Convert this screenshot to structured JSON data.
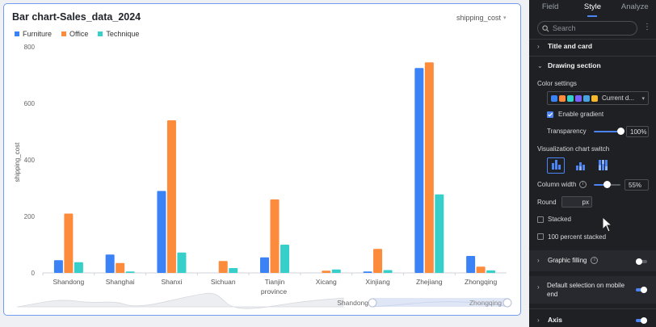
{
  "chart_card": {
    "title": "Bar chart-Sales_data_2024",
    "measure_select": "shipping_cost",
    "legend": [
      {
        "label": "Furniture",
        "color": "#3b82f6"
      },
      {
        "label": "Office",
        "color": "#fd8b3c"
      },
      {
        "label": "Technique",
        "color": "#36cfc9"
      }
    ],
    "slider": {
      "start_label": "Shandong",
      "end_label": "Zhongqing"
    }
  },
  "chart_data": {
    "type": "bar",
    "xlabel": "province",
    "ylabel": "shipping_cost",
    "ylim": [
      0,
      800
    ],
    "yticks": [
      0,
      200,
      400,
      600,
      800
    ],
    "categories": [
      "Shandong",
      "Shanghai",
      "Shanxi",
      "Sichuan",
      "Tianjin",
      "Xicang",
      "Xinjiang",
      "Zhejiang",
      "Zhongqing"
    ],
    "series": [
      {
        "name": "Furniture",
        "color": "#3b82f6",
        "values": [
          45,
          65,
          290,
          0,
          55,
          0,
          5,
          725,
          60
        ]
      },
      {
        "name": "Office",
        "color": "#fd8b3c",
        "values": [
          210,
          35,
          540,
          42,
          260,
          8,
          85,
          745,
          22
        ]
      },
      {
        "name": "Technique",
        "color": "#36cfc9",
        "values": [
          38,
          5,
          72,
          17,
          100,
          12,
          10,
          278,
          9
        ]
      }
    ],
    "grid": false,
    "legend_position": "top-left"
  },
  "panel": {
    "tabs": [
      {
        "label": "Field",
        "active": false
      },
      {
        "label": "Style",
        "active": true
      },
      {
        "label": "Analyze",
        "active": false
      }
    ],
    "search_placeholder": "Search",
    "sections": {
      "title_and_card": "Title and card",
      "drawing_section": "Drawing section",
      "graphic_filling": "Graphic filling",
      "default_selection": "Default selection on mobile end",
      "axis": "Axis"
    },
    "color_settings_label": "Color settings",
    "color_select_value": "Current d...",
    "palette": [
      "#3b82f6",
      "#fd8b3c",
      "#36cfc9",
      "#7b61ff",
      "#4aa3df",
      "#f5b82e"
    ],
    "enable_gradient_label": "Enable gradient",
    "enable_gradient": true,
    "transparency_label": "Transparency",
    "transparency_value": "100%",
    "transparency_fraction": 1.0,
    "chart_switch_label": "Visualization chart switch",
    "column_width_label": "Column width",
    "column_width_value": "55%",
    "column_width_fraction": 0.55,
    "round_label": "Round",
    "round_unit": "px",
    "stacked_label": "Stacked",
    "percent_stacked_label": "100 percent stacked",
    "graphic_filling_on": false,
    "default_selection_on": true,
    "axis_on": true
  }
}
